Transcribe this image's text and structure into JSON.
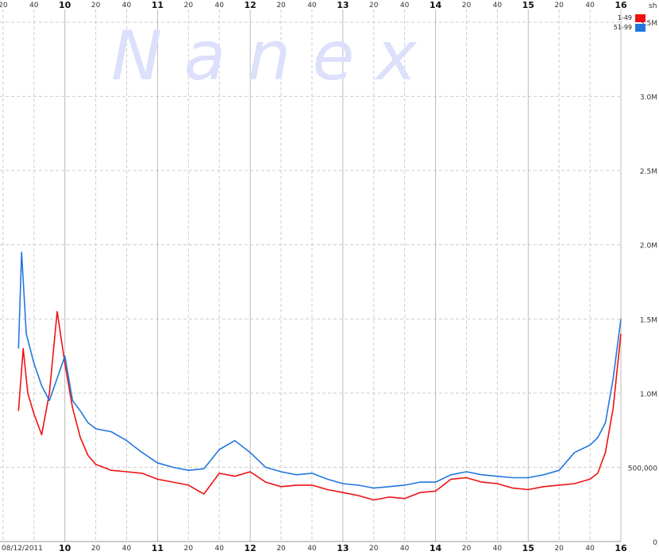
{
  "watermark": "N a n e x",
  "date_label": "08/12/2011",
  "y_unit": "sh",
  "chart_data": {
    "type": "line",
    "title": "",
    "xlabel": "",
    "ylabel": "",
    "x_range": [
      "09:30",
      "16:00"
    ],
    "ylim": [
      0,
      3500000
    ],
    "y_tick_values": [
      0,
      500000,
      1000000,
      1500000,
      2000000,
      2500000,
      3000000,
      3500000
    ],
    "y_tick_labels": [
      "0",
      "500,000",
      "1.0M",
      "1.5M",
      "2.0M",
      "2.5M",
      "3.0M",
      "3.5M"
    ],
    "x_major_hours": [
      "10",
      "11",
      "12",
      "13",
      "14",
      "15",
      "16"
    ],
    "x_minor_labels": [
      "20",
      "40"
    ],
    "grid": true,
    "legend_position": "top-right",
    "series": [
      {
        "name": "1-49",
        "color": "#ee1111",
        "points": [
          [
            "09:30",
            880000
          ],
          [
            "09:33",
            1300000
          ],
          [
            "09:36",
            1000000
          ],
          [
            "09:40",
            860000
          ],
          [
            "09:45",
            720000
          ],
          [
            "09:50",
            1000000
          ],
          [
            "09:55",
            1550000
          ],
          [
            "10:00",
            1200000
          ],
          [
            "10:05",
            900000
          ],
          [
            "10:10",
            700000
          ],
          [
            "10:15",
            580000
          ],
          [
            "10:20",
            520000
          ],
          [
            "10:30",
            480000
          ],
          [
            "10:40",
            470000
          ],
          [
            "10:50",
            460000
          ],
          [
            "11:00",
            420000
          ],
          [
            "11:10",
            400000
          ],
          [
            "11:20",
            380000
          ],
          [
            "11:30",
            320000
          ],
          [
            "11:40",
            460000
          ],
          [
            "11:50",
            440000
          ],
          [
            "12:00",
            470000
          ],
          [
            "12:10",
            400000
          ],
          [
            "12:20",
            370000
          ],
          [
            "12:30",
            380000
          ],
          [
            "12:40",
            380000
          ],
          [
            "12:50",
            350000
          ],
          [
            "13:00",
            330000
          ],
          [
            "13:10",
            310000
          ],
          [
            "13:20",
            280000
          ],
          [
            "13:30",
            300000
          ],
          [
            "13:40",
            290000
          ],
          [
            "13:50",
            330000
          ],
          [
            "14:00",
            340000
          ],
          [
            "14:10",
            420000
          ],
          [
            "14:20",
            430000
          ],
          [
            "14:30",
            400000
          ],
          [
            "14:40",
            390000
          ],
          [
            "14:50",
            360000
          ],
          [
            "15:00",
            350000
          ],
          [
            "15:10",
            370000
          ],
          [
            "15:20",
            380000
          ],
          [
            "15:30",
            390000
          ],
          [
            "15:40",
            420000
          ],
          [
            "15:45",
            460000
          ],
          [
            "15:50",
            600000
          ],
          [
            "15:55",
            900000
          ],
          [
            "16:00",
            1400000
          ]
        ]
      },
      {
        "name": "51-99",
        "color": "#2277dd",
        "points": [
          [
            "09:30",
            1300000
          ],
          [
            "09:32",
            1950000
          ],
          [
            "09:35",
            1400000
          ],
          [
            "09:40",
            1200000
          ],
          [
            "09:45",
            1050000
          ],
          [
            "09:50",
            950000
          ],
          [
            "09:55",
            1100000
          ],
          [
            "10:00",
            1250000
          ],
          [
            "10:05",
            950000
          ],
          [
            "10:10",
            880000
          ],
          [
            "10:15",
            800000
          ],
          [
            "10:20",
            760000
          ],
          [
            "10:30",
            740000
          ],
          [
            "10:40",
            680000
          ],
          [
            "10:50",
            600000
          ],
          [
            "11:00",
            530000
          ],
          [
            "11:10",
            500000
          ],
          [
            "11:20",
            480000
          ],
          [
            "11:30",
            490000
          ],
          [
            "11:40",
            620000
          ],
          [
            "11:50",
            680000
          ],
          [
            "12:00",
            600000
          ],
          [
            "12:10",
            500000
          ],
          [
            "12:20",
            470000
          ],
          [
            "12:30",
            450000
          ],
          [
            "12:40",
            460000
          ],
          [
            "12:50",
            420000
          ],
          [
            "13:00",
            390000
          ],
          [
            "13:10",
            380000
          ],
          [
            "13:20",
            360000
          ],
          [
            "13:30",
            370000
          ],
          [
            "13:40",
            380000
          ],
          [
            "13:50",
            400000
          ],
          [
            "14:00",
            400000
          ],
          [
            "14:10",
            450000
          ],
          [
            "14:20",
            470000
          ],
          [
            "14:30",
            450000
          ],
          [
            "14:40",
            440000
          ],
          [
            "14:50",
            430000
          ],
          [
            "15:00",
            430000
          ],
          [
            "15:10",
            450000
          ],
          [
            "15:20",
            480000
          ],
          [
            "15:30",
            600000
          ],
          [
            "15:40",
            650000
          ],
          [
            "15:45",
            700000
          ],
          [
            "15:50",
            800000
          ],
          [
            "15:55",
            1100000
          ],
          [
            "16:00",
            1500000
          ]
        ]
      }
    ]
  }
}
